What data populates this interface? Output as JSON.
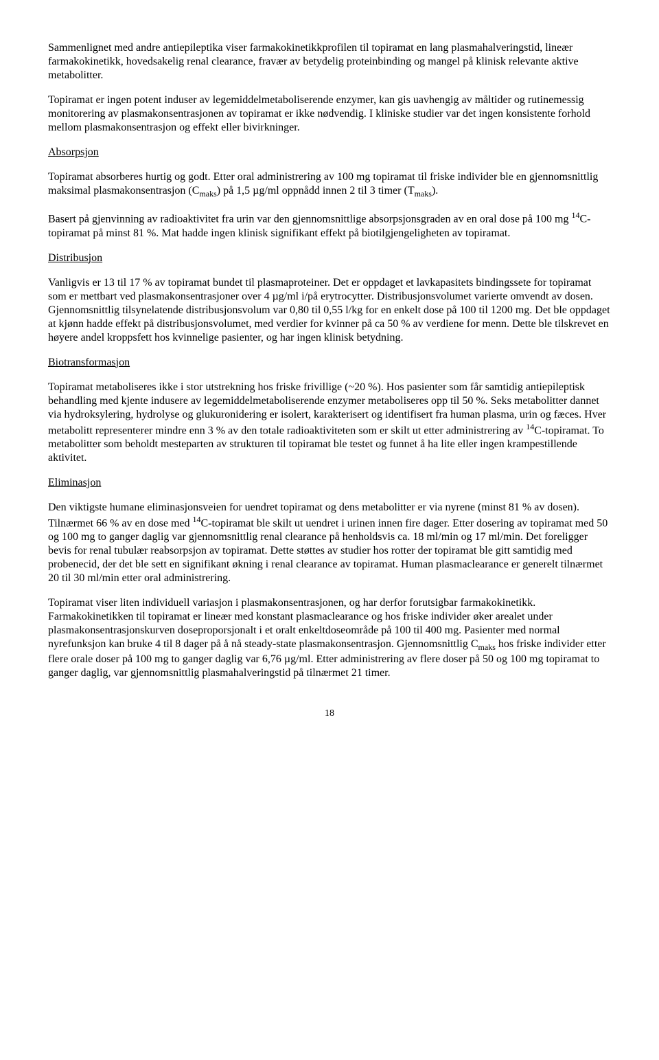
{
  "paragraphs": {
    "p1": "Sammenlignet med andre antiepileptika viser farmakokinetikkprofilen til topiramat en lang plasmahalveringstid, lineær farmakokinetikk, hovedsakelig renal clearance, fravær av betydelig proteinbinding og mangel på klinisk relevante aktive metabolitter.",
    "p2": "Topiramat er ingen potent induser av legemiddelmetaboliserende enzymer, kan gis uavhengig av måltider og rutinemessig monitorering av plasmakonsentrasjonen av topiramat er ikke nødvendig. I kliniske studier var det ingen konsistente forhold mellom plasmakonsentrasjon og effekt eller bivirkninger.",
    "h_absorpsjon": "Absorpsjon",
    "p3_a": "Topiramat absorberes hurtig og godt. Etter oral administrering av 100 mg topiramat til friske individer ble en gjennomsnittlig maksimal plasmakonsentrasjon (C",
    "p3_sub1": "maks",
    "p3_b": ") på 1,5 µg/ml oppnådd innen 2 til 3 timer (T",
    "p3_sub2": "maks",
    "p3_c": ").",
    "p4_a": "Basert på gjenvinning av radioaktivitet fra urin var den gjennomsnittlige absorpsjonsgraden av en oral dose på 100 mg ",
    "p4_sup": "14",
    "p4_b": "C-topiramat på minst 81 %. Mat hadde ingen klinisk signifikant effekt på biotilgjengeligheten av topiramat.",
    "h_distribusjon": "Distribusjon",
    "p5": "Vanligvis er 13 til 17 % av topiramat bundet til plasmaproteiner. Det er oppdaget et lavkapasitets bindingssete for topiramat som er mettbart ved plasmakonsentrasjoner over 4 µg/ml i/på erytrocytter. Distribusjonsvolumet varierte omvendt av dosen. Gjennomsnittlig tilsynelatende distribusjonsvolum var 0,80 til 0,55 l/kg for en enkelt dose på 100 til 1200 mg. Det ble oppdaget at kjønn hadde effekt på distribusjonsvolumet, med verdier for kvinner på ca 50 % av verdiene for menn. Dette ble tilskrevet en høyere andel kroppsfett hos kvinnelige pasienter, og har ingen klinisk betydning.",
    "h_biotransformasjon": "Biotransformasjon",
    "p6_a": "Topiramat metaboliseres ikke i stor utstrekning hos friske frivillige (~20 %). Hos pasienter som får samtidig antiepileptisk behandling med kjente indusere av legemiddelmetaboliserende enzymer metaboliseres opp til 50 %. Seks metabolitter dannet via hydroksylering, hydrolyse og glukuronidering er isolert, karakterisert og identifisert fra human plasma, urin og fæces. Hver metabolitt representerer mindre enn 3 % av den totale radioaktiviteten som er skilt ut etter administrering av ",
    "p6_sup": "14",
    "p6_b": "C-topiramat. To metabolitter som beholdt mesteparten av strukturen til topiramat ble testet og funnet å ha lite eller ingen krampestillende aktivitet.",
    "h_eliminasjon": "Eliminasjon",
    "p7_a": "Den viktigste humane eliminasjonsveien for uendret topiramat og dens metabolitter er via nyrene (minst 81 % av dosen). Tilnærmet 66 % av en dose med ",
    "p7_sup": "14",
    "p7_b": "C-topiramat ble skilt ut uendret i urinen innen fire dager. Etter dosering av topiramat med 50 og 100 mg to ganger daglig var gjennomsnittlig renal clearance på henholdsvis ca. 18 ml/min og 17 ml/min. Det foreligger bevis for renal tubulær reabsorpsjon av topiramat. Dette støttes av studier hos rotter der topiramat ble gitt samtidig med probenecid, der det ble sett en signifikant økning i renal clearance av topiramat. Human plasmaclearance er generelt tilnærmet 20 til 30 ml/min etter oral administrering.",
    "p8_a": "Topiramat viser liten individuell variasjon i plasmakonsentrasjonen, og har derfor forutsigbar farmakokinetikk. Farmakokinetikken til topiramat er lineær med konstant plasmaclearance og hos friske individer øker arealet under plasmakonsentrasjonskurven doseproporsjonalt i et oralt enkeltdoseområde på 100 til 400 mg. Pasienter med normal nyrefunksjon kan bruke 4 til 8 dager på å nå steady-state plasmakonsentrasjon. Gjennomsnittlig C",
    "p8_sub": "maks",
    "p8_b": " hos friske individer etter flere orale doser på 100 mg to ganger daglig var 6,76 µg/ml. Etter administrering av flere doser på 50 og 100 mg topiramat to ganger daglig, var gjennomsnittlig plasmahalveringstid på tilnærmet 21 timer."
  },
  "page_number": "18"
}
